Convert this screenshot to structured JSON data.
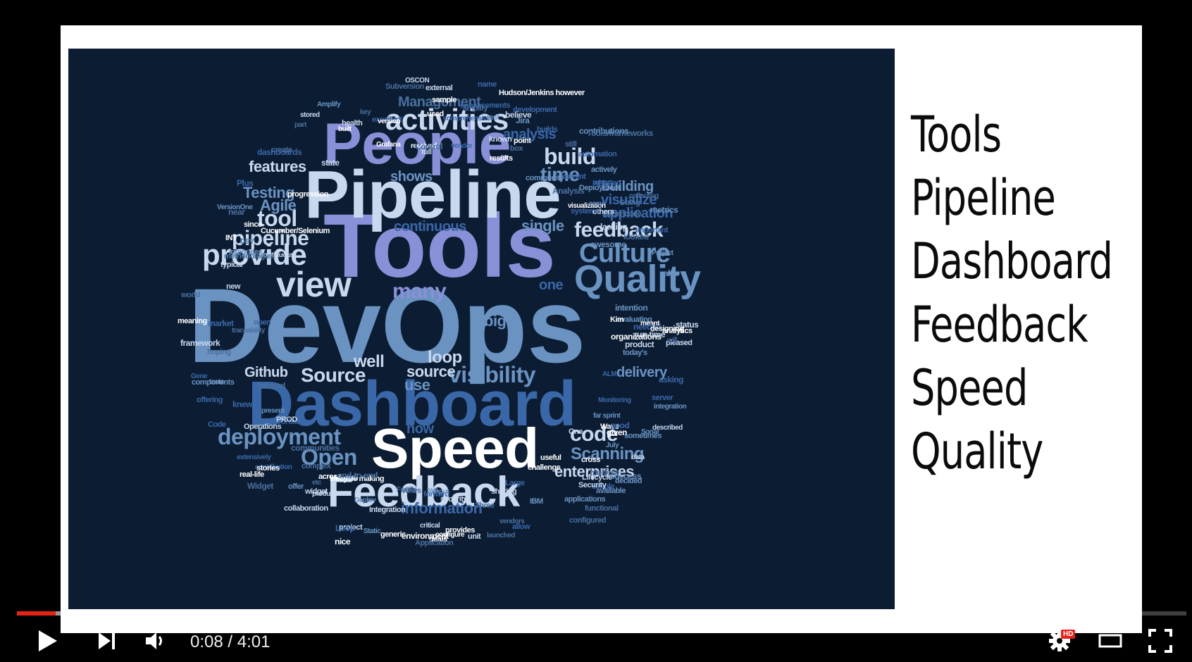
{
  "slide": {
    "side_list": [
      "Tools",
      "Pipeline",
      "Dashboard",
      "Feedback",
      "Speed",
      "Quality"
    ],
    "word_cloud": {
      "colors": {
        "dark": "#3a67a8",
        "light": "#6a93c2",
        "lavender": "#8a90d8",
        "white": "#ffffff",
        "pale": "#c8d8ee",
        "dim": "#4a6f9e"
      },
      "words": [
        "DevOps",
        "Tools",
        "Pipeline",
        "People",
        "Dashboard",
        "Speed",
        "Feedback",
        "Quality",
        "Culture",
        "activities",
        "view",
        "provide",
        "many",
        "tool",
        "pipeline",
        "Testing",
        "Agile",
        "features",
        "build",
        "time",
        "feedback",
        "code",
        "deployment",
        "Open",
        "Scanning",
        "enterprises",
        "information",
        "visibility",
        "source",
        "Source",
        "Github",
        "loop",
        "well",
        "use",
        "delivery",
        "now",
        "continuous",
        "single",
        "one",
        "big",
        "analysis",
        "building",
        "visualize",
        "application",
        "shows",
        "Management",
        "traceability",
        "Deployment",
        "generic",
        "Monitoring",
        "Continuous",
        "methodologies",
        "applications",
        "visualization",
        "comprehensive",
        "Operations",
        "focused",
        "community",
        "environment",
        "automation",
        "health",
        "complex",
        "components",
        "Hudson/Jenkins however",
        "excellent",
        "product",
        "Fortify",
        "Static",
        "analytics",
        "Important",
        "described",
        "communities",
        "decided",
        "meaning",
        "market",
        "lacking",
        "create",
        "integrates",
        "sample",
        "offering",
        "sharing",
        "Urbancode",
        "easy",
        "challenge",
        "Portland",
        "full",
        "multiple",
        "today's",
        "received",
        "dashboards",
        "Lifecycle",
        "configured",
        "test",
        "lifecycle making",
        "builds",
        "new",
        "Widget",
        "awesome",
        "point",
        "ALM",
        "security",
        "Three",
        "evaluating",
        "meant",
        "knew",
        "status",
        "still",
        "Deploy",
        "built",
        "forward",
        "project",
        "world",
        "offer",
        "deals",
        "Gene",
        "unit",
        "vendors",
        "tests",
        "Kim",
        "open",
        "pleased",
        "key",
        "also",
        "real-life",
        "contribution",
        "known",
        "etc",
        "far sprint",
        "provides",
        "extensively",
        "external",
        "DEV",
        "two",
        "INT",
        "PERF",
        "real",
        "near",
        "IBM",
        "nice",
        "Loop",
        "widget",
        "box",
        "Jira",
        "used",
        "asking",
        "One",
        "views",
        "July",
        "Ways",
        "Plus",
        "PROD",
        "functional",
        "input",
        "cross",
        "allow",
        "state",
        "Going",
        "actively",
        "given",
        "server",
        "stored",
        "launched",
        "success",
        "results",
        "simple",
        "others",
        "part",
        "Sonar",
        "since",
        "Large",
        "believe",
        "looked",
        "Amplify",
        "across",
        "current",
        "Integration",
        "amplify",
        "available",
        "Grafana",
        "name",
        "OSCON",
        "will",
        "Project",
        "progression",
        "vendor",
        "typical",
        "hoping",
        "intention",
        "version",
        "shorten",
        "data",
        "end-to-end",
        "present",
        "useful",
        "good",
        "critical",
        "Control",
        "metrics",
        "stories",
        "Code",
        "Security",
        "Analysis",
        "contributions",
        "organizations",
        "needed",
        "products",
        "Subversion",
        "VersionOne",
        "configure",
        "enhancements",
        "collaboration",
        "Application",
        "sometimes",
        "Cucumber/Selenium",
        "systems",
        "run-time",
        "collecting",
        "integration",
        "designing",
        "development",
        "framework",
        "Tools/frameworks"
      ]
    }
  },
  "player": {
    "time": "0:08 / 4:01",
    "progress_fraction": 0.033,
    "buffered_fraction": 0.304,
    "hd_badge": "HD",
    "accent": "#e62117"
  }
}
